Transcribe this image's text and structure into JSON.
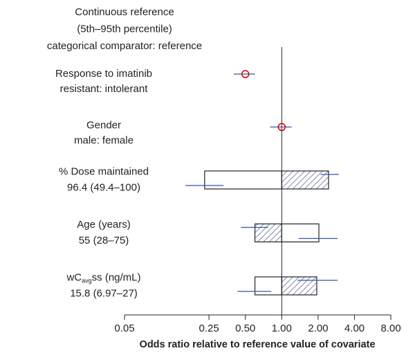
{
  "chart_data": {
    "type": "forest",
    "header": [
      "Continuous reference",
      "(5th–95th percentile)",
      "categorical comparator: reference"
    ],
    "x_label": "Odds ratio relative to reference value of covariate",
    "xscale": "log",
    "xlim": [
      0.05,
      8
    ],
    "xticks": [
      0.05,
      0.25,
      {
        "value": 0.5,
        "label": "0.50"
      },
      {
        "value": 1,
        "label": "1.00"
      },
      {
        "value": 2,
        "label": "2.00"
      },
      {
        "value": 4,
        "label": "4.00"
      },
      {
        "value": 8,
        "label": "8.00"
      }
    ],
    "reference": 1,
    "point_color": "#cc0000",
    "ci_color": "#3355aa",
    "hatch_color": "#2b3f7a",
    "rows": [
      {
        "kind": "categorical",
        "lines": [
          "Response to imatinib",
          "resistant: intolerant"
        ],
        "estimate": 0.5,
        "ci": [
          0.4,
          0.6
        ]
      },
      {
        "kind": "categorical",
        "lines": [
          "Gender",
          "male: female"
        ],
        "estimate": 1.0,
        "ci": [
          0.8,
          1.21
        ]
      },
      {
        "kind": "continuous",
        "lines": [
          "% Dose maintained",
          "96.4 (49.4–100)"
        ],
        "low": 0.23,
        "high": 2.44,
        "low_ci": [
          0.16,
          0.33
        ],
        "high_ci": [
          2.1,
          2.97
        ],
        "hatched": "high"
      },
      {
        "kind": "continuous",
        "lines": [
          "Age (years)",
          "55 (28–75)"
        ],
        "low": 0.6,
        "high": 2.03,
        "low_ci": [
          0.46,
          0.77
        ],
        "high_ci": [
          1.38,
          2.9
        ],
        "hatched": "low"
      },
      {
        "kind": "continuous",
        "lines": [
          [
            "wC",
            "avg",
            "ss (ng/mL)"
          ],
          "15.8 (6.97–27)"
        ],
        "low": 0.6,
        "high": 1.95,
        "low_ci": [
          0.43,
          0.82
        ],
        "high_ci": [
          1.35,
          2.9
        ],
        "hatched": "high"
      }
    ]
  }
}
